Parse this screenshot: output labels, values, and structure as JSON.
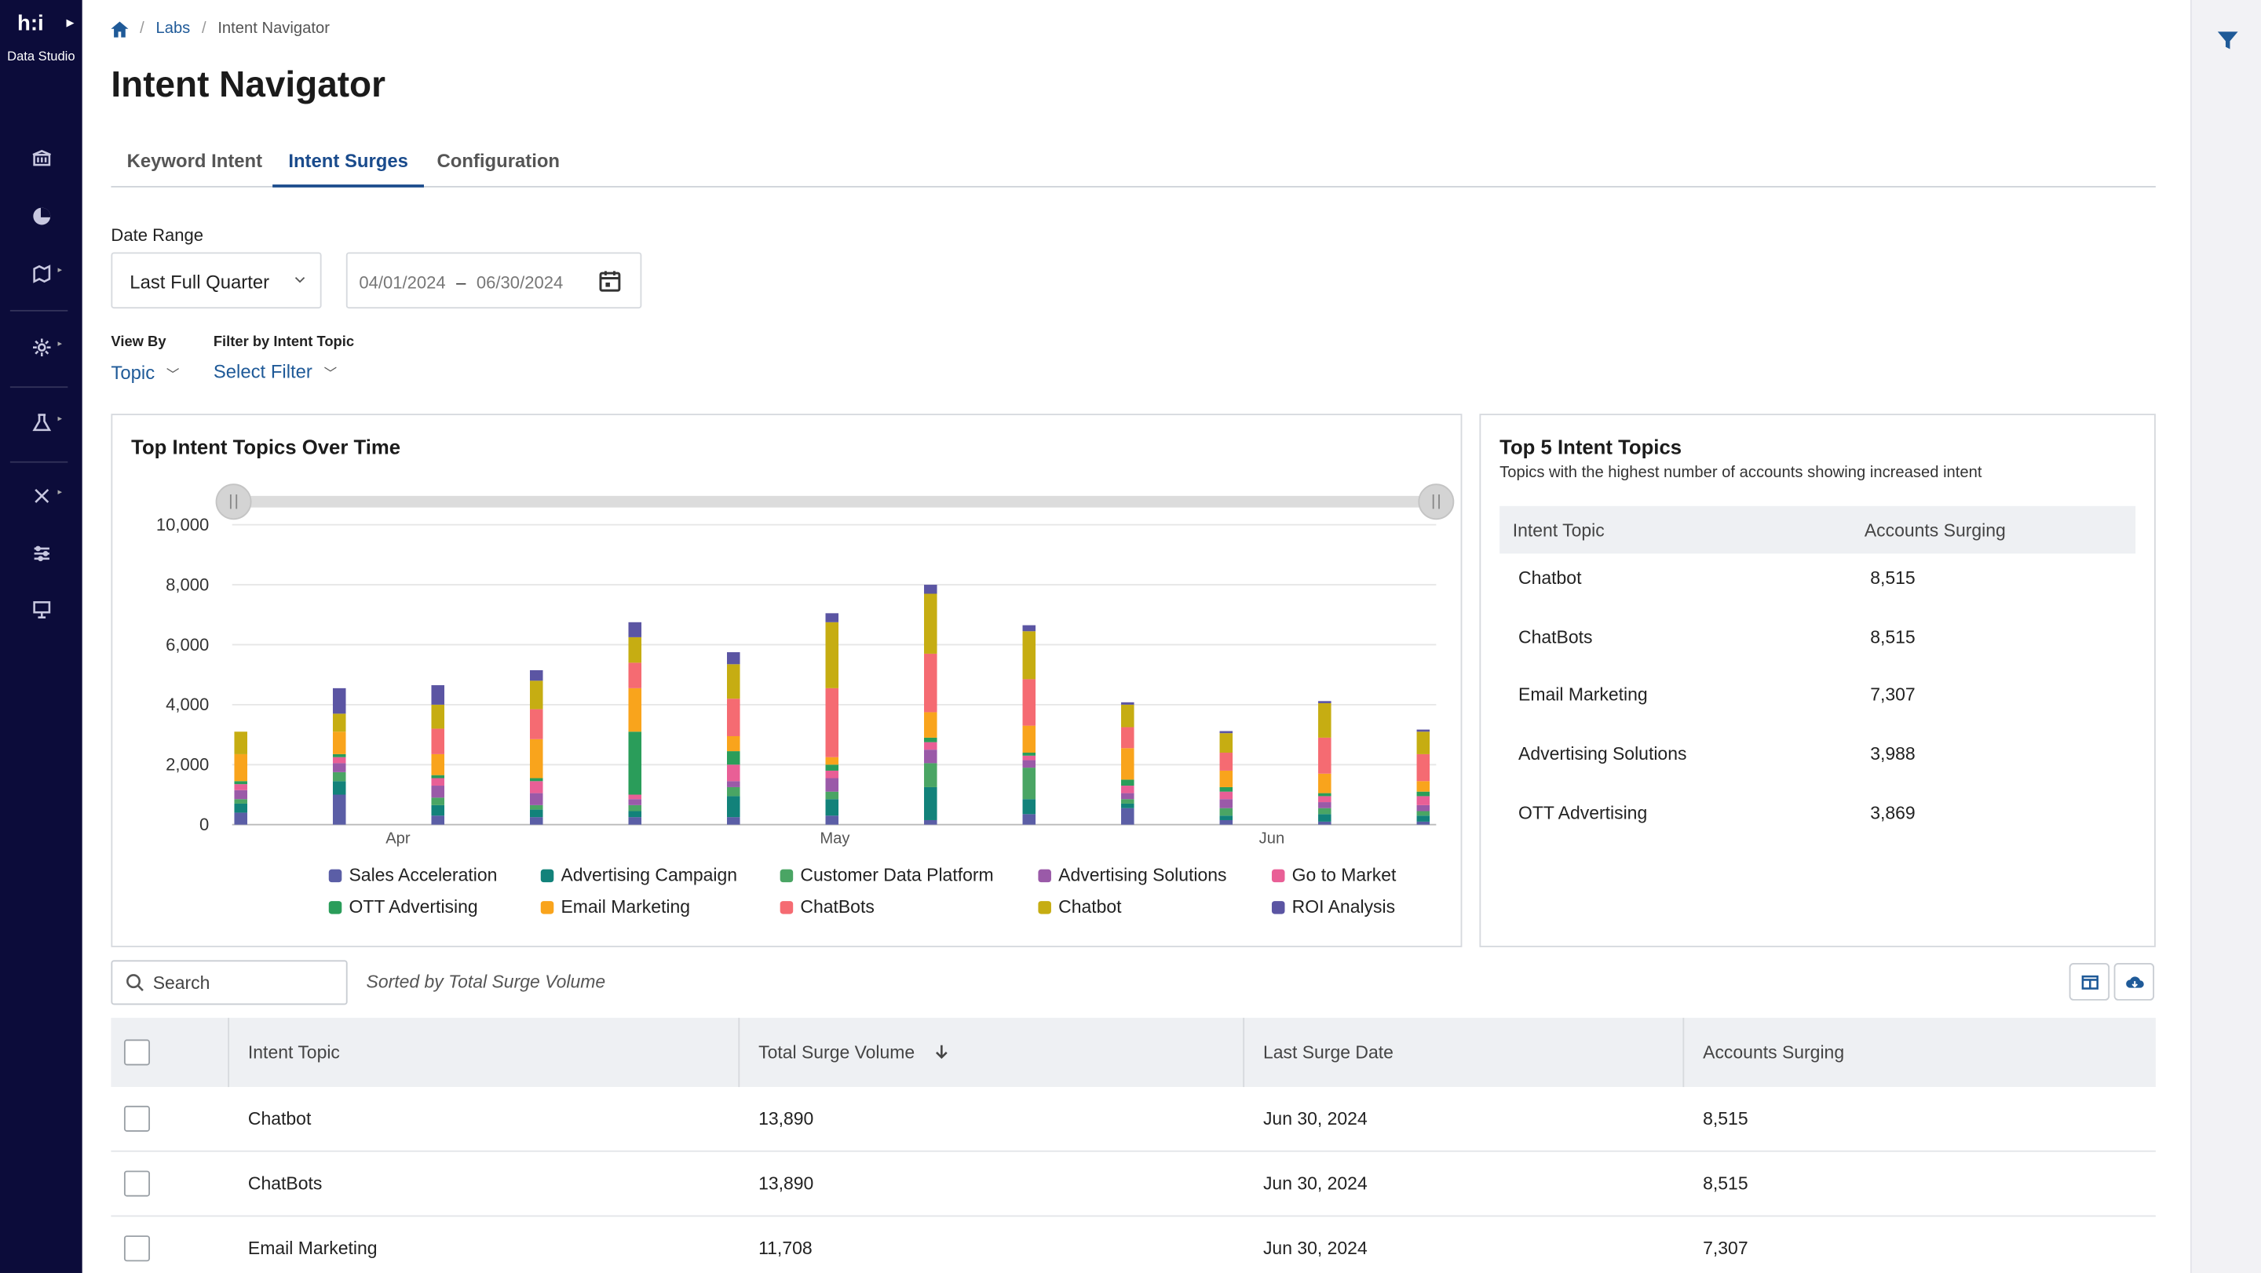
{
  "sidebar": {
    "logo": "h:i",
    "brand": "Data Studio",
    "items": [
      "building-icon",
      "pie-chart-icon",
      "map-icon",
      "gear-icon",
      "lab-icon",
      "tools-icon",
      "sliders-icon",
      "presentation-icon"
    ]
  },
  "breadcrumbs": {
    "home": "home-icon",
    "labs": "Labs",
    "current": "Intent Navigator"
  },
  "page": {
    "title": "Intent Navigator"
  },
  "tabs": [
    "Keyword Intent",
    "Intent Surges",
    "Configuration"
  ],
  "active_tab": "Intent Surges",
  "filters": {
    "date_range_label": "Date Range",
    "date_range_value": "Last Full Quarter",
    "start_date": "04/01/2024",
    "end_date": "06/30/2024",
    "date_sep": "–",
    "view_by_label": "View By",
    "view_by_value": "Topic",
    "filter_topic_label": "Filter by Intent Topic",
    "filter_topic_value": "Select Filter"
  },
  "chart_card": {
    "title": "Top Intent Topics Over Time"
  },
  "chart_data": {
    "type": "bar",
    "stacked": true,
    "title": "Top Intent Topics Over Time",
    "x_labels": [
      "Apr",
      "May",
      "Jun"
    ],
    "y_ticks": [
      "0",
      "2,000",
      "4,000",
      "6,000",
      "8,000",
      "10,000"
    ],
    "ylim": [
      0,
      10000
    ],
    "bar_count": 13,
    "series": [
      {
        "name": "Sales Acceleration",
        "color": "#5b5ea6",
        "values": [
          400,
          1000,
          300,
          250,
          250,
          250,
          300,
          150,
          350,
          550,
          150,
          100,
          100
        ]
      },
      {
        "name": "Advertising Campaign",
        "color": "#12827a",
        "values": [
          300,
          450,
          350,
          250,
          200,
          700,
          550,
          1100,
          500,
          150,
          150,
          250,
          200
        ]
      },
      {
        "name": "Customer Data Platform",
        "color": "#4aa564",
        "values": [
          150,
          300,
          250,
          150,
          200,
          300,
          250,
          800,
          1050,
          150,
          250,
          200,
          150
        ]
      },
      {
        "name": "Advertising Solutions",
        "color": "#9a5aa8",
        "values": [
          300,
          300,
          400,
          400,
          200,
          200,
          450,
          450,
          250,
          200,
          300,
          200,
          200
        ]
      },
      {
        "name": "Go to Market",
        "color": "#e95f96",
        "values": [
          200,
          200,
          250,
          400,
          150,
          550,
          250,
          250,
          150,
          250,
          250,
          200,
          300
        ]
      },
      {
        "name": "OTT Advertising",
        "color": "#2a9d5a",
        "values": [
          100,
          100,
          100,
          100,
          2100,
          450,
          200,
          150,
          100,
          200,
          150,
          100,
          150
        ]
      },
      {
        "name": "Email Marketing",
        "color": "#f9a41c",
        "values": [
          900,
          750,
          700,
          1300,
          1450,
          500,
          250,
          850,
          900,
          1050,
          550,
          650,
          350
        ]
      },
      {
        "name": "ChatBots",
        "color": "#f56b72",
        "values": [
          0,
          0,
          850,
          1000,
          850,
          1250,
          2300,
          1950,
          1550,
          700,
          600,
          1200,
          900
        ]
      },
      {
        "name": "Chatbot",
        "color": "#c6ad12",
        "values": [
          750,
          600,
          800,
          950,
          850,
          1150,
          2200,
          2000,
          1600,
          750,
          650,
          1150,
          750
        ]
      },
      {
        "name": "ROI Analysis",
        "color": "#5b55a3",
        "values": [
          0,
          850,
          650,
          350,
          500,
          400,
          300,
          300,
          200,
          80,
          70,
          70,
          70
        ]
      }
    ]
  },
  "top5": {
    "title": "Top 5 Intent Topics",
    "subtitle": "Topics with the highest number of accounts showing increased intent",
    "col_topic": "Intent Topic",
    "col_accounts": "Accounts Surging",
    "rows": [
      {
        "topic": "Chatbot",
        "accounts": "8,515"
      },
      {
        "topic": "ChatBots",
        "accounts": "8,515"
      },
      {
        "topic": "Email Marketing",
        "accounts": "7,307"
      },
      {
        "topic": "Advertising Solutions",
        "accounts": "3,988"
      },
      {
        "topic": "OTT Advertising",
        "accounts": "3,869"
      }
    ]
  },
  "toolbar": {
    "search_placeholder": "Search",
    "sorted_text": "Sorted by Total Surge Volume"
  },
  "table": {
    "columns": [
      "Intent Topic",
      "Total Surge Volume",
      "Last Surge Date",
      "Accounts Surging"
    ],
    "rows": [
      {
        "topic": "Chatbot",
        "volume": "13,890",
        "date": "Jun 30, 2024",
        "accounts": "8,515"
      },
      {
        "topic": "ChatBots",
        "volume": "13,890",
        "date": "Jun 30, 2024",
        "accounts": "8,515"
      },
      {
        "topic": "Email Marketing",
        "volume": "11,708",
        "date": "Jun 30, 2024",
        "accounts": "7,307"
      }
    ]
  }
}
